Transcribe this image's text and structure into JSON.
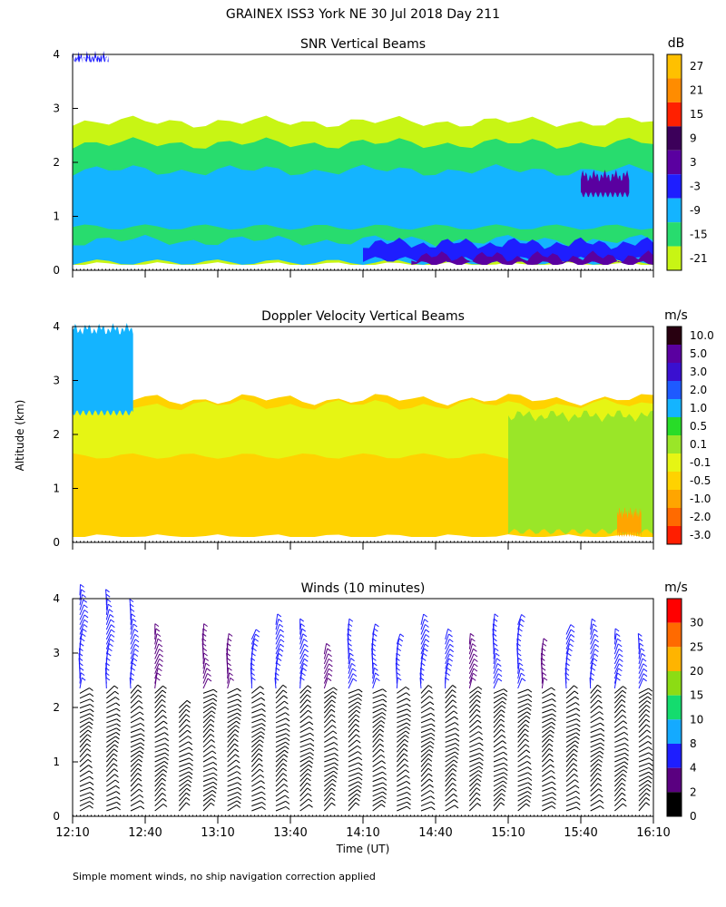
{
  "title": "GRAINEX ISS3 York NE  30 Jul 2018 Day 211",
  "footnote": "Simple moment winds, no ship navigation correction applied",
  "chart_data": [
    {
      "type": "heatmap",
      "title": "SNR Vertical Beams",
      "ylabel": "",
      "ylim": [
        0,
        4
      ],
      "y_ticks": [
        "0",
        "1",
        "2",
        "3",
        "4"
      ],
      "colorbar_unit": "dB",
      "colorbar_labels": [
        "27",
        "21",
        "15",
        "9",
        "3",
        "-3",
        "-9",
        "-15",
        "-21"
      ],
      "colorbar_colors": [
        "#ffc000",
        "#ff8c00",
        "#ff2000",
        "#3c005a",
        "#5a00a0",
        "#1e1eff",
        "#14b4ff",
        "#28dc6e",
        "#c8f514"
      ],
      "layers": [
        {
          "from_time": "12:10",
          "to_time": "16:10",
          "alt_low": 0.1,
          "alt_high": 2.8,
          "color": "#c8f514"
        },
        {
          "from_time": "12:10",
          "to_time": "16:10",
          "alt_low": 0.2,
          "alt_high": 2.4,
          "color": "#28dc6e"
        },
        {
          "from_time": "12:10",
          "to_time": "16:10",
          "alt_low": 0.8,
          "alt_high": 1.9,
          "color": "#14b4ff"
        },
        {
          "from_time": "12:10",
          "to_time": "16:10",
          "alt_low": 0.15,
          "alt_high": 0.6,
          "color": "#14b4ff"
        },
        {
          "from_time": "14:10",
          "to_time": "16:10",
          "alt_low": 0.2,
          "alt_high": 0.55,
          "color": "#1e1eff"
        },
        {
          "from_time": "14:30",
          "to_time": "16:10",
          "alt_low": 0.12,
          "alt_high": 0.3,
          "color": "#5a00a0"
        },
        {
          "from_time": "15:40",
          "to_time": "16:00",
          "alt_low": 1.4,
          "alt_high": 1.8,
          "color": "#5a00a0"
        },
        {
          "from_time": "12:10",
          "to_time": "12:25",
          "alt_low": 3.9,
          "alt_high": 4.0,
          "color": "#1e1eff"
        }
      ]
    },
    {
      "type": "heatmap",
      "title": "Doppler Velocity Vertical Beams",
      "ylabel": "Altitude (km)",
      "ylim": [
        0,
        4
      ],
      "y_ticks": [
        "0",
        "1",
        "2",
        "3",
        "4"
      ],
      "colorbar_unit": "m/s",
      "colorbar_labels": [
        "10.0",
        "5.0",
        "3.0",
        "2.0",
        "1.0",
        "0.5",
        "0.1",
        "-0.1",
        "-0.5",
        "-1.0",
        "-2.0",
        "-3.0"
      ],
      "colorbar_colors": [
        "#280010",
        "#5a00a0",
        "#3a10d0",
        "#1e5aff",
        "#14b4ff",
        "#28dc28",
        "#9ae628",
        "#e6f514",
        "#ffd200",
        "#ffa500",
        "#ff6a00",
        "#ff1e00"
      ],
      "layers": [
        {
          "from_time": "12:10",
          "to_time": "16:10",
          "alt_low": 0.1,
          "alt_high": 2.7,
          "color": "#ffd200"
        },
        {
          "from_time": "12:10",
          "to_time": "16:10",
          "alt_low": 1.6,
          "alt_high": 2.6,
          "color": "#e6f514"
        },
        {
          "from_time": "15:10",
          "to_time": "16:10",
          "alt_low": 0.2,
          "alt_high": 2.4,
          "color": "#9ae628"
        },
        {
          "from_time": "12:10",
          "to_time": "12:35",
          "alt_low": 2.4,
          "alt_high": 4.0,
          "color": "#14b4ff"
        },
        {
          "from_time": "15:55",
          "to_time": "16:05",
          "alt_low": 0.15,
          "alt_high": 0.6,
          "color": "#ffa500"
        }
      ]
    },
    {
      "type": "scatter",
      "title": "Winds (10 minutes)",
      "xlabel": "Time (UT)",
      "ylim": [
        0,
        4
      ],
      "y_ticks": [
        "0",
        "1",
        "2",
        "3",
        "4"
      ],
      "x_ticks": [
        "12:10",
        "12:40",
        "13:10",
        "13:40",
        "14:10",
        "14:40",
        "15:10",
        "15:40",
        "16:10"
      ],
      "colorbar_unit": "m/s",
      "colorbar_labels": [
        "30",
        "25",
        "20",
        "15",
        "10",
        "8",
        "4",
        "2",
        "0"
      ],
      "colorbar_colors": [
        "#ff0000",
        "#ff6a00",
        "#ffb400",
        "#8cdc14",
        "#14dc6e",
        "#14aaff",
        "#1e1eff",
        "#5a0080",
        "#000000"
      ],
      "profiles": [
        {
          "time": "12:13",
          "top_km": 4.1,
          "speed_ms": 4
        },
        {
          "time": "12:24",
          "top_km": 4.05,
          "speed_ms": 4
        },
        {
          "time": "12:34",
          "top_km": 3.8,
          "speed_ms": 4
        },
        {
          "time": "12:44",
          "top_km": 3.4,
          "speed_ms": 2
        },
        {
          "time": "12:54",
          "top_km": 2.0,
          "speed_ms": 2
        },
        {
          "time": "13:04",
          "top_km": 3.4,
          "speed_ms": 2
        },
        {
          "time": "13:14",
          "top_km": 3.2,
          "speed_ms": 2
        },
        {
          "time": "13:24",
          "top_km": 3.3,
          "speed_ms": 4
        },
        {
          "time": "13:34",
          "top_km": 3.6,
          "speed_ms": 4
        },
        {
          "time": "13:44",
          "top_km": 3.5,
          "speed_ms": 4
        },
        {
          "time": "13:54",
          "top_km": 3.0,
          "speed_ms": 2
        },
        {
          "time": "14:04",
          "top_km": 3.5,
          "speed_ms": 4
        },
        {
          "time": "14:14",
          "top_km": 3.4,
          "speed_ms": 4
        },
        {
          "time": "14:24",
          "top_km": 3.2,
          "speed_ms": 4
        },
        {
          "time": "14:34",
          "top_km": 3.6,
          "speed_ms": 4
        },
        {
          "time": "14:44",
          "top_km": 3.3,
          "speed_ms": 4
        },
        {
          "time": "14:54",
          "top_km": 3.2,
          "speed_ms": 2
        },
        {
          "time": "15:04",
          "top_km": 3.6,
          "speed_ms": 4
        },
        {
          "time": "15:14",
          "top_km": 3.6,
          "speed_ms": 4
        },
        {
          "time": "15:24",
          "top_km": 3.1,
          "speed_ms": 2
        },
        {
          "time": "15:34",
          "top_km": 3.4,
          "speed_ms": 4
        },
        {
          "time": "15:44",
          "top_km": 3.5,
          "speed_ms": 4
        },
        {
          "time": "15:54",
          "top_km": 3.3,
          "speed_ms": 4
        },
        {
          "time": "16:04",
          "top_km": 3.2,
          "speed_ms": 4
        }
      ]
    }
  ]
}
